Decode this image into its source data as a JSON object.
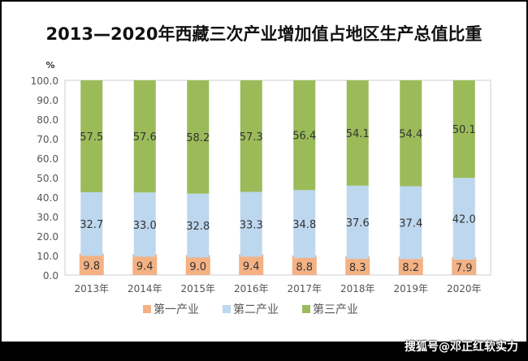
{
  "chart_data": {
    "type": "bar",
    "stacked": true,
    "title": "2013—2020年西藏三次产业增加值占地区生产总值比重",
    "ylabel": "%",
    "ylim": [
      0,
      100
    ],
    "yticks": [
      "0.0",
      "10.0",
      "20.0",
      "30.0",
      "40.0",
      "50.0",
      "60.0",
      "70.0",
      "80.0",
      "90.0",
      "100.0"
    ],
    "categories": [
      "2013年",
      "2014年",
      "2015年",
      "2016年",
      "2017年",
      "2018年",
      "2019年",
      "2020年"
    ],
    "series": [
      {
        "name": "第一产业",
        "color": "#F4B183",
        "values": [
          9.8,
          9.4,
          9.0,
          9.4,
          8.8,
          8.3,
          8.2,
          7.9
        ]
      },
      {
        "name": "第二产业",
        "color": "#BDD7EE",
        "values": [
          32.7,
          33.0,
          32.8,
          33.3,
          34.8,
          37.6,
          37.4,
          42.0
        ]
      },
      {
        "name": "第三产业",
        "color": "#9BBB59",
        "values": [
          57.5,
          57.6,
          58.2,
          57.3,
          56.4,
          54.1,
          54.4,
          50.1
        ]
      }
    ],
    "legend": "bottom",
    "grid": false
  },
  "watermark": "搜狐号@邓正红软实力"
}
